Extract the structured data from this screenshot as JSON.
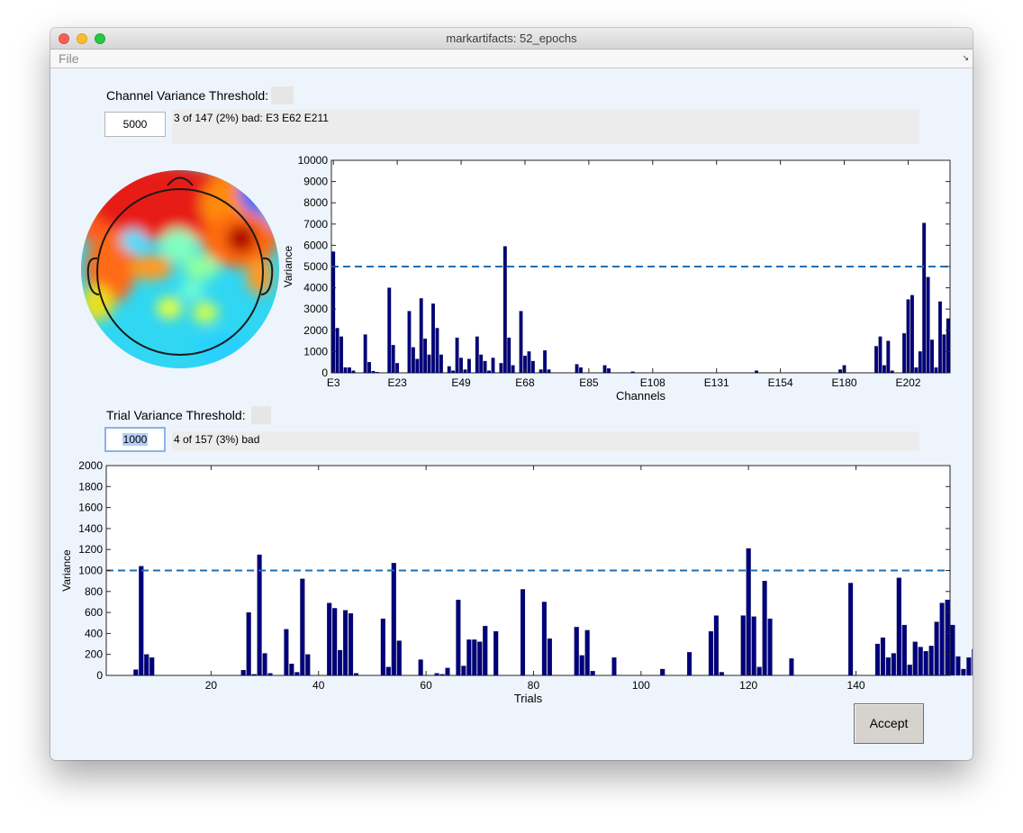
{
  "window": {
    "title": "markartifacts: 52_epochs"
  },
  "menu": {
    "file": "File"
  },
  "channel": {
    "label": "Channel Variance Threshold:",
    "threshold": "5000",
    "info": "3 of 147 (2%) bad: E3 E62 E211"
  },
  "trial": {
    "label": "Trial Variance Threshold:",
    "threshold": "1000",
    "info": "4 of 157 (3%) bad"
  },
  "accept_label": "Accept",
  "chart_data": [
    {
      "type": "bar",
      "xlabel": "Channels",
      "ylabel": "Variance",
      "ylim": [
        0,
        10000
      ],
      "yticks": [
        0,
        1000,
        2000,
        3000,
        4000,
        5000,
        6000,
        7000,
        8000,
        9000,
        10000
      ],
      "xtick_labels": [
        "E3",
        "E23",
        "E49",
        "E68",
        "E85",
        "E108",
        "E131",
        "E154",
        "E180",
        "E202"
      ],
      "xtick_indices": [
        1,
        17,
        33,
        49,
        65,
        81,
        97,
        113,
        129,
        145
      ],
      "threshold": 5000,
      "color": "#00007f",
      "threshold_color": "#1f6fb2",
      "values": [
        5700,
        2100,
        1700,
        250,
        250,
        100,
        0,
        0,
        1800,
        500,
        80,
        30,
        0,
        0,
        4000,
        1300,
        450,
        0,
        0,
        2900,
        1200,
        650,
        3500,
        1600,
        850,
        3250,
        2100,
        850,
        0,
        300,
        100,
        1650,
        700,
        150,
        650,
        0,
        1700,
        850,
        550,
        100,
        700,
        0,
        450,
        5950,
        1650,
        350,
        0,
        2900,
        800,
        1000,
        550,
        0,
        150,
        1050,
        150,
        0,
        0,
        0,
        0,
        0,
        0,
        400,
        250,
        0,
        0,
        0,
        0,
        0,
        350,
        200,
        0,
        0,
        0,
        0,
        0,
        50,
        0,
        0,
        0,
        0,
        0,
        0,
        0,
        0,
        0,
        0,
        0,
        0,
        0,
        0,
        0,
        0,
        0,
        0,
        0,
        0,
        0,
        0,
        0,
        0,
        0,
        0,
        0,
        0,
        0,
        0,
        100,
        0,
        0,
        0,
        0,
        0,
        0,
        0,
        0,
        0,
        0,
        0,
        0,
        0,
        0,
        0,
        0,
        0,
        0,
        0,
        0,
        150,
        350,
        0,
        0,
        0,
        0,
        0,
        0,
        0,
        1250,
        1700,
        350,
        1500,
        100,
        0,
        0,
        1850,
        3450,
        3650,
        250,
        1000,
        7050,
        4500,
        1550,
        250,
        3350,
        1800,
        2550
      ]
    },
    {
      "type": "bar",
      "xlabel": "Trials",
      "ylabel": "Variance",
      "ylim": [
        0,
        2000
      ],
      "xlim": [
        0.5,
        157.5
      ],
      "yticks": [
        0,
        200,
        400,
        600,
        800,
        1000,
        1200,
        1400,
        1600,
        1800,
        2000
      ],
      "xticks": [
        20,
        40,
        60,
        80,
        100,
        120,
        140
      ],
      "threshold": 1000,
      "color": "#00007f",
      "threshold_color": "#1f6fb2",
      "values": [
        0,
        0,
        0,
        0,
        0,
        55,
        1040,
        200,
        170,
        0,
        0,
        0,
        0,
        0,
        0,
        0,
        0,
        0,
        0,
        0,
        0,
        0,
        0,
        0,
        0,
        50,
        600,
        10,
        1150,
        210,
        20,
        0,
        0,
        440,
        110,
        30,
        920,
        200,
        0,
        0,
        0,
        690,
        640,
        240,
        620,
        590,
        20,
        0,
        0,
        0,
        0,
        540,
        80,
        1070,
        330,
        0,
        0,
        0,
        150,
        0,
        0,
        20,
        10,
        70,
        0,
        720,
        90,
        340,
        340,
        320,
        470,
        0,
        420,
        0,
        0,
        0,
        0,
        820,
        0,
        0,
        0,
        700,
        350,
        0,
        0,
        0,
        0,
        460,
        190,
        430,
        40,
        0,
        0,
        0,
        170,
        0,
        0,
        0,
        0,
        0,
        0,
        0,
        0,
        60,
        0,
        0,
        0,
        0,
        220,
        0,
        0,
        0,
        420,
        570,
        30,
        0,
        0,
        0,
        570,
        1210,
        560,
        80,
        900,
        540,
        0,
        0,
        0,
        160,
        0,
        0,
        0,
        0,
        0,
        0,
        0,
        0,
        0,
        0,
        880,
        0,
        0,
        0,
        0,
        300,
        360,
        170,
        210,
        930,
        480,
        100,
        320,
        270,
        230,
        280,
        510,
        690,
        720,
        480,
        180,
        60,
        170,
        250
      ]
    }
  ]
}
